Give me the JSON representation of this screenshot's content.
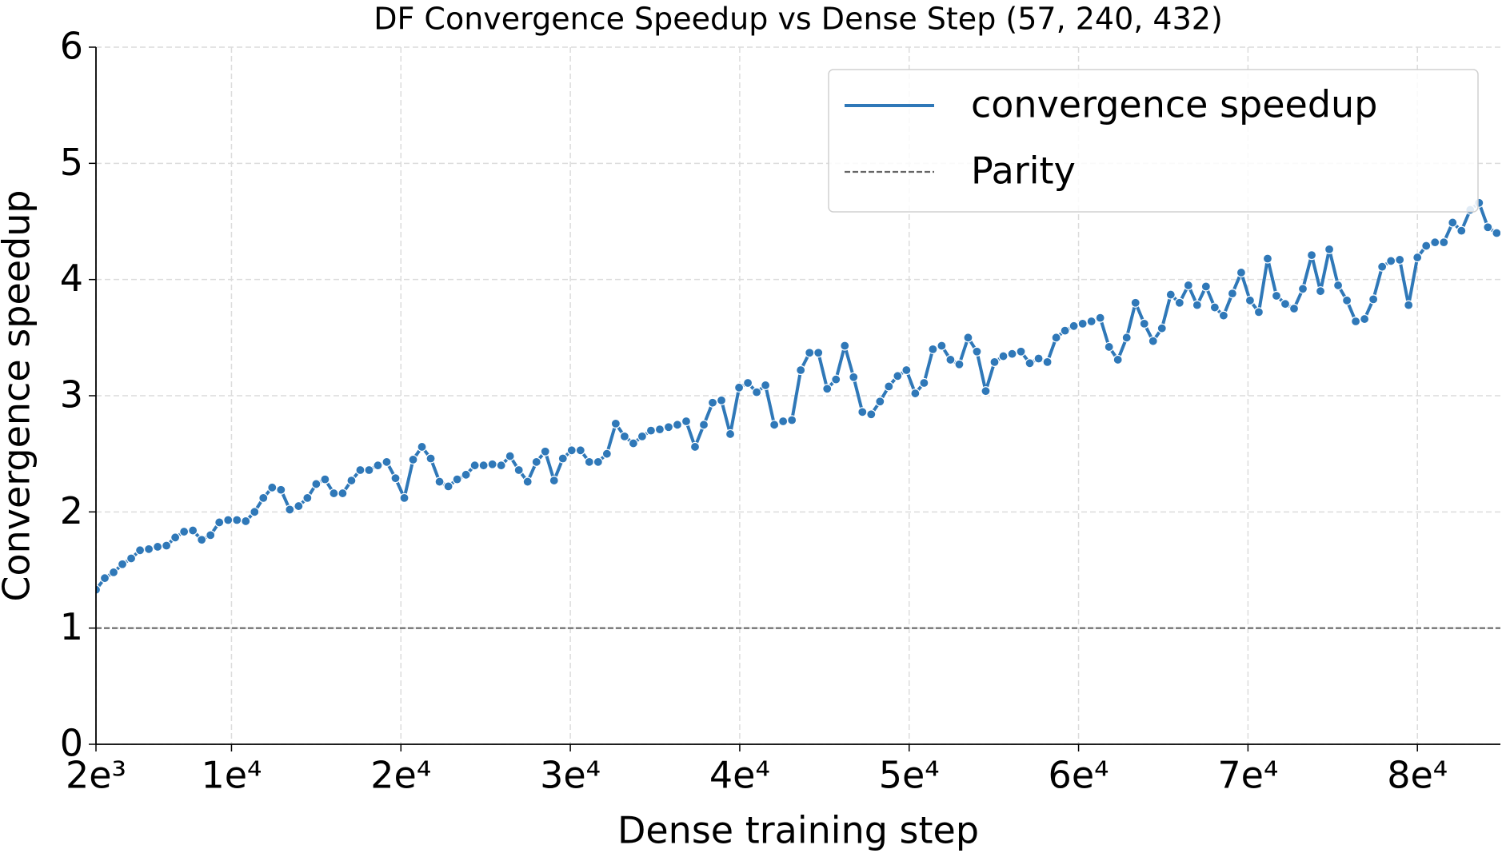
{
  "chart_data": {
    "type": "line",
    "title": "DF Convergence Speedup vs Dense Step (57, 240, 432)",
    "x_label": "Dense training step",
    "y_label": "Convergence speedup",
    "x": [
      2000,
      2520,
      3040,
      3560,
      4080,
      4600,
      5120,
      5640,
      6160,
      6680,
      7200,
      7720,
      8240,
      8760,
      9280,
      9800,
      10320,
      10840,
      11360,
      11880,
      12400,
      12920,
      13440,
      13960,
      14480,
      15000,
      15520,
      16040,
      16560,
      17080,
      17600,
      18120,
      18640,
      19160,
      19680,
      20200,
      20720,
      21240,
      21760,
      22280,
      22800,
      23320,
      23840,
      24360,
      24880,
      25400,
      25920,
      26440,
      26960,
      27480,
      28000,
      28520,
      29040,
      29560,
      30080,
      30600,
      31120,
      31640,
      32160,
      32680,
      33200,
      33720,
      34240,
      34760,
      35280,
      35800,
      36320,
      36840,
      37360,
      37880,
      38400,
      38920,
      39440,
      39960,
      40480,
      41000,
      41520,
      42040,
      42560,
      43080,
      43600,
      44120,
      44640,
      45160,
      45680,
      46200,
      46720,
      47240,
      47760,
      48280,
      48800,
      49320,
      49840,
      50360,
      50880,
      51400,
      51920,
      52440,
      52960,
      53480,
      54000,
      54520,
      55040,
      55560,
      56080,
      56600,
      57120,
      57640,
      58160,
      58680,
      59200,
      59720,
      60240,
      60760,
      61280,
      61800,
      62320,
      62840,
      63360,
      63880,
      64400,
      64920,
      65440,
      65960,
      66480,
      67000,
      67520,
      68040,
      68560,
      69080,
      69600,
      70120,
      70640,
      71160,
      71680,
      72200,
      72720,
      73240,
      73760,
      74280,
      74800,
      75320,
      75840,
      76360,
      76880,
      77400,
      77920,
      78440,
      78960,
      79480,
      80000,
      80520,
      81040,
      81560,
      82080,
      82600,
      83120,
      83640,
      84160,
      84680
    ],
    "series": [
      {
        "name": "convergence speedup",
        "color": "#2f78b8",
        "values": [
          1.33,
          1.43,
          1.48,
          1.55,
          1.6,
          1.67,
          1.68,
          1.7,
          1.71,
          1.78,
          1.83,
          1.84,
          1.76,
          1.8,
          1.91,
          1.93,
          1.93,
          1.92,
          2.0,
          2.12,
          2.21,
          2.19,
          2.02,
          2.05,
          2.12,
          2.24,
          2.28,
          2.16,
          2.16,
          2.27,
          2.36,
          2.36,
          2.4,
          2.43,
          2.29,
          2.12,
          2.45,
          2.56,
          2.46,
          2.26,
          2.22,
          2.28,
          2.32,
          2.4,
          2.4,
          2.41,
          2.4,
          2.48,
          2.36,
          2.26,
          2.43,
          2.52,
          2.27,
          2.46,
          2.53,
          2.53,
          2.43,
          2.43,
          2.5,
          2.76,
          2.65,
          2.59,
          2.65,
          2.7,
          2.71,
          2.73,
          2.75,
          2.78,
          2.56,
          2.75,
          2.94,
          2.96,
          2.67,
          3.07,
          3.11,
          3.03,
          3.09,
          2.75,
          2.78,
          2.79,
          3.22,
          3.37,
          3.37,
          3.06,
          3.14,
          3.43,
          3.16,
          2.86,
          2.84,
          2.95,
          3.08,
          3.17,
          3.22,
          3.02,
          3.11,
          3.4,
          3.43,
          3.31,
          3.27,
          3.5,
          3.38,
          3.04,
          3.29,
          3.34,
          3.36,
          3.38,
          3.28,
          3.32,
          3.29,
          3.5,
          3.56,
          3.6,
          3.62,
          3.64,
          3.67,
          3.42,
          3.31,
          3.5,
          3.8,
          3.62,
          3.47,
          3.58,
          3.87,
          3.8,
          3.95,
          3.78,
          3.94,
          3.76,
          3.69,
          3.88,
          4.06,
          3.82,
          3.72,
          4.18,
          3.86,
          3.79,
          3.75,
          3.92,
          4.21,
          3.9,
          4.26,
          3.95,
          3.82,
          3.64,
          3.66,
          3.83,
          4.11,
          4.16,
          4.17,
          3.78,
          4.19,
          4.29,
          4.32,
          4.32,
          4.49,
          4.42,
          4.6,
          4.66,
          4.45,
          4.4
        ]
      }
    ],
    "reference_lines": [
      {
        "name": "Parity",
        "value": 1,
        "color": "#666666"
      }
    ],
    "xlim": [
      2000,
      84900
    ],
    "ylim": [
      0,
      6
    ],
    "xticks": [
      {
        "value": 2000,
        "label": "2e³"
      },
      {
        "value": 10000,
        "label": "1e⁴"
      },
      {
        "value": 20000,
        "label": "2e⁴"
      },
      {
        "value": 30000,
        "label": "3e⁴"
      },
      {
        "value": 40000,
        "label": "4e⁴"
      },
      {
        "value": 50000,
        "label": "5e⁴"
      },
      {
        "value": 60000,
        "label": "6e⁴"
      },
      {
        "value": 70000,
        "label": "7e⁴"
      },
      {
        "value": 80000,
        "label": "8e⁴"
      }
    ],
    "yticks": [
      0,
      1,
      2,
      3,
      4,
      5,
      6
    ],
    "grid": true,
    "legend": "upper right"
  }
}
